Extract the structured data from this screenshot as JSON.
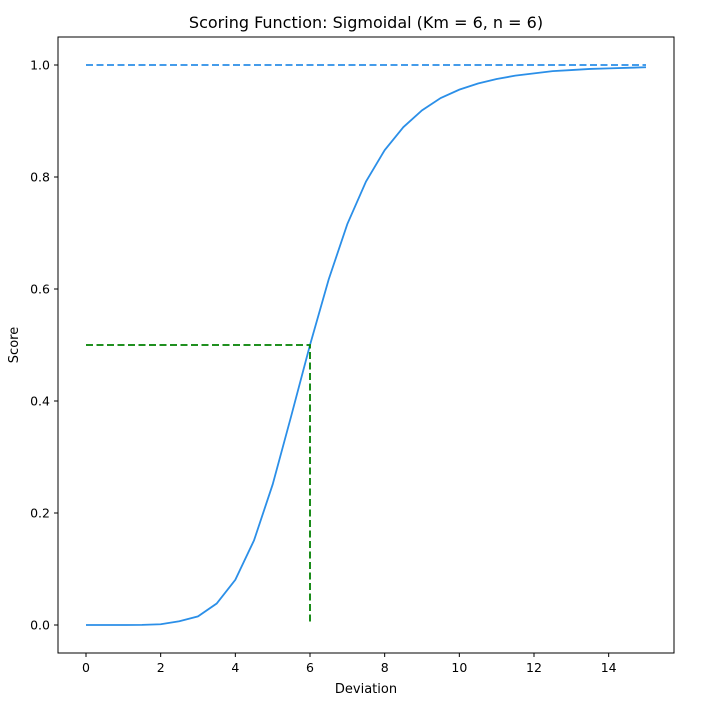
{
  "chart_data": {
    "type": "line",
    "title": "Scoring Function: Sigmoidal (Km = 6, n = 6)",
    "xlabel": "Deviation",
    "ylabel": "Score",
    "xlim": [
      -0.75,
      15.75
    ],
    "ylim": [
      -0.05,
      1.05
    ],
    "xticks": [
      "0",
      "2",
      "4",
      "6",
      "8",
      "10",
      "12",
      "14"
    ],
    "yticks": [
      "0.0",
      "0.2",
      "0.4",
      "0.6",
      "0.8",
      "1.0"
    ],
    "grid": false,
    "legend": "none",
    "series": [
      {
        "style": "solid",
        "color": "#2b8fe8",
        "x": [
          0,
          0.5,
          1,
          1.5,
          2,
          2.5,
          3,
          3.5,
          4,
          4.5,
          5,
          5.5,
          6,
          6.5,
          7,
          7.5,
          8,
          8.5,
          9,
          9.5,
          10,
          10.5,
          11,
          11.5,
          12,
          12.5,
          13,
          13.5,
          14,
          14.5,
          15
        ],
        "y": [
          0,
          0,
          0,
          0.0002,
          0.0014,
          0.0067,
          0.0154,
          0.0383,
          0.0807,
          0.151,
          0.251,
          0.374,
          0.5,
          0.617,
          0.716,
          0.792,
          0.848,
          0.889,
          0.919,
          0.941,
          0.956,
          0.967,
          0.975,
          0.981,
          0.985,
          0.989,
          0.991,
          0.993,
          0.994,
          0.995,
          0.996
        ]
      },
      {
        "style": "dashed",
        "color": "#2b8fe8",
        "x": [
          0,
          15
        ],
        "y": [
          1.0,
          1.0
        ]
      },
      {
        "style": "dashed",
        "color": "#008000",
        "x": [
          0,
          6,
          6
        ],
        "y": [
          0.5,
          0.5,
          0.0
        ]
      }
    ]
  }
}
